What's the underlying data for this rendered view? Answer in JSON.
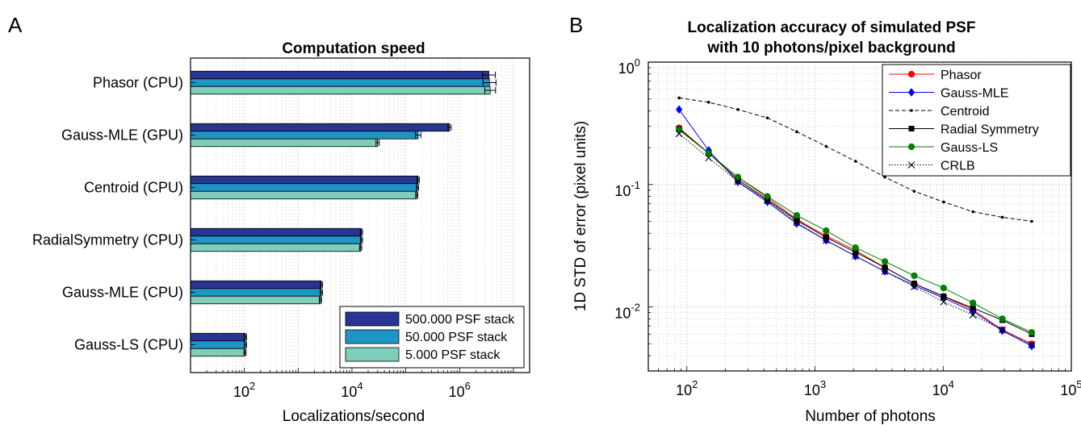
{
  "panels": [
    {
      "letter": "A",
      "chart_data": {
        "type": "bar",
        "orientation": "horizontal",
        "title": "Computation speed",
        "xlabel": "Localizations/second",
        "ylabel": "",
        "xscale": "log",
        "xlim": [
          10,
          20000000
        ],
        "xticks": [
          100,
          10000,
          1000000
        ],
        "xtick_labels": [
          {
            "base": "10",
            "exp": "2"
          },
          {
            "base": "10",
            "exp": "4"
          },
          {
            "base": "10",
            "exp": "6"
          }
        ],
        "grid": true,
        "legend_position": "bottom-right",
        "categories": [
          "Phasor (CPU)",
          "Gauss-MLE (GPU)",
          "Centroid (CPU)",
          "RadialSymmetry (CPU)",
          "Gauss-MLE (CPU)",
          "Gauss-LS (CPU)"
        ],
        "series": [
          {
            "name": "500.000 PSF stack",
            "color": "#283593",
            "values": [
              3500000,
              650000,
              170000,
              15000,
              2700,
              105
            ],
            "errors": [
              0.12,
              0.03,
              0.02,
              0.02,
              0.02,
              0.02
            ]
          },
          {
            "name": "50.000 PSF stack",
            "color": "#1f95c6",
            "values": [
              3600000,
              170000,
              165000,
              15000,
              2700,
              105
            ],
            "errors": [
              0.12,
              0.05,
              0.02,
              0.02,
              0.02,
              0.02
            ]
          },
          {
            "name": "5.000 PSF stack",
            "color": "#7fcdbb",
            "values": [
              3700000,
              30000,
              160000,
              14500,
              2600,
              103
            ],
            "errors": [
              0.1,
              0.03,
              0.02,
              0.02,
              0.02,
              0.02
            ]
          }
        ]
      }
    },
    {
      "letter": "B",
      "chart_data": {
        "type": "line",
        "title_lines": [
          "Localization accuracy of simulated PSF",
          "with 10 photons/pixel background"
        ],
        "xlabel": "Number of photons",
        "ylabel": "1D STD of error (pixel units)",
        "xscale": "log",
        "yscale": "log",
        "xlim": [
          50,
          100000
        ],
        "ylim": [
          0.003,
          1
        ],
        "xticks": [
          100,
          1000,
          10000,
          100000
        ],
        "xtick_labels": [
          {
            "base": "10",
            "exp": "2"
          },
          {
            "base": "10",
            "exp": "3"
          },
          {
            "base": "10",
            "exp": "4"
          },
          {
            "base": "10",
            "exp": "5"
          }
        ],
        "yticks": [
          0.01,
          0.1,
          1
        ],
        "ytick_labels": [
          {
            "base": "10",
            "exp": "-2"
          },
          {
            "base": "10",
            "exp": "-1"
          },
          {
            "base": "10",
            "exp": "0"
          }
        ],
        "grid": true,
        "legend_position": "top-right",
        "x": [
          87,
          148,
          250,
          425,
          720,
          1220,
          2070,
          3510,
          5950,
          10080,
          17080,
          28960,
          49090
        ],
        "series": [
          {
            "name": "Phasor",
            "color": "#ff0000",
            "dash": "solid",
            "marker": "circle",
            "values": [
              0.29,
              0.18,
              0.115,
              0.078,
              0.052,
              0.038,
              0.029,
              0.021,
              0.0155,
              0.0122,
              0.0095,
              0.0065,
              0.005
            ]
          },
          {
            "name": "Gauss-MLE",
            "color": "#0000ff",
            "dash": "solid",
            "marker": "diamond",
            "values": [
              0.41,
              0.19,
              0.105,
              0.072,
              0.048,
              0.035,
              0.026,
              0.0195,
              0.015,
              0.0118,
              0.0092,
              0.0064,
              0.0048
            ]
          },
          {
            "name": "Centroid",
            "color": "#000000",
            "dash": "dashed",
            "marker": "dot",
            "values": [
              0.51,
              0.47,
              0.41,
              0.35,
              0.27,
              0.205,
              0.155,
              0.115,
              0.088,
              0.072,
              0.06,
              0.054,
              0.05
            ]
          },
          {
            "name": "Radial Symmetry",
            "color": "#000000",
            "dash": "solid",
            "marker": "square",
            "values": [
              0.285,
              0.18,
              0.11,
              0.075,
              0.051,
              0.037,
              0.028,
              0.021,
              0.0155,
              0.0122,
              0.0098,
              0.0078,
              0.006
            ]
          },
          {
            "name": "Gauss-LS",
            "color": "#008000",
            "dash": "solid",
            "marker": "circle",
            "values": [
              0.28,
              0.18,
              0.115,
              0.08,
              0.056,
              0.042,
              0.0305,
              0.0235,
              0.018,
              0.0143,
              0.0108,
              0.008,
              0.0062
            ]
          },
          {
            "name": "CRLB",
            "color": "#000000",
            "dash": "dotted",
            "marker": "x",
            "values": [
              0.26,
              0.165,
              0.106,
              0.074,
              0.049,
              0.035,
              0.026,
              0.0195,
              0.0146,
              0.011,
              0.0086,
              0.0065,
              0.0049
            ]
          }
        ]
      }
    }
  ]
}
